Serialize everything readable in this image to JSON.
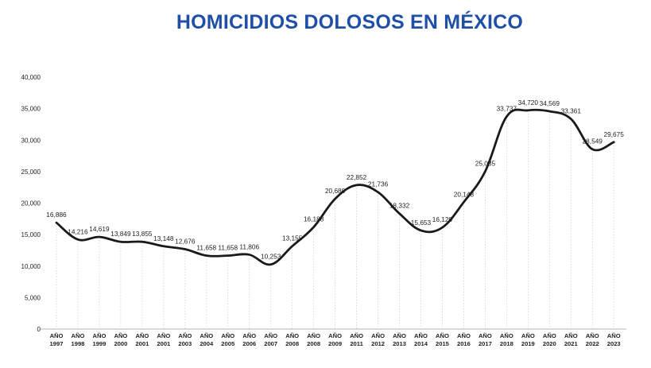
{
  "chart_data": {
    "type": "line",
    "title": "HOMICIDIOS DOLOSOS EN MÉXICO",
    "xlabel": "",
    "ylabel": "",
    "ylim": [
      0,
      40000
    ],
    "yticks": [
      "0",
      "5,000",
      "10,000",
      "15,000",
      "20,000",
      "25,000",
      "30,000",
      "35,000",
      "40,000"
    ],
    "grid": "vertical dotted",
    "categories": [
      "AÑO 1997",
      "AÑO 1998",
      "AÑO 1999",
      "AÑO 2000",
      "AÑO 2001",
      "AÑO 2001",
      "AÑO 2003",
      "AÑO 2004",
      "AÑO 2005",
      "AÑO 2006",
      "AÑO 2007",
      "AÑO 2008",
      "AÑO 2008",
      "AÑO 2009",
      "AÑO 2011",
      "AÑO 2012",
      "AÑO 2013",
      "AÑO 2014",
      "AÑO 2015",
      "AÑO 2016",
      "AÑO 2017",
      "AÑO 2018",
      "AÑO 2019",
      "AÑO 2020",
      "AÑO 2021",
      "AÑO 2022",
      "AÑO 2023"
    ],
    "series": [
      {
        "values": [
          16886,
          14216,
          14619,
          13849,
          13855,
          13148,
          12676,
          11658,
          11658,
          11806,
          10253,
          13155,
          16188,
          20680,
          22852,
          21736,
          18332,
          15653,
          16120,
          20148,
          25035,
          33737,
          34720,
          34569,
          33361,
          28549,
          29675
        ],
        "labels": [
          "16,886",
          "14,216",
          "14,619",
          "13,849",
          "13,855",
          "13,148",
          "12,676",
          "11,658",
          "11,658",
          "11,806",
          "10,253",
          "13,155",
          "16,188",
          "20,680",
          "22,852",
          "21,736",
          "18,332",
          "15,653",
          "16,120",
          "20,148",
          "25,035",
          "33,737",
          "34,720",
          "34,569",
          "33,361",
          "28,549",
          "29,675"
        ]
      }
    ],
    "line_color": "#1a1a1a",
    "title_color": "#1f4fa6"
  }
}
